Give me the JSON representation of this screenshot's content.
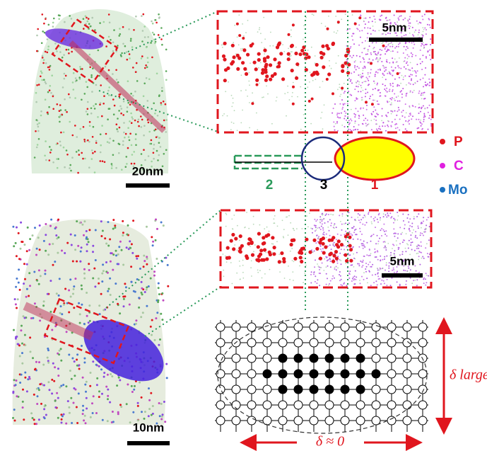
{
  "top_left": {
    "scale_bar": "20nm"
  },
  "top_zoom": {
    "scale_bar": "5nm"
  },
  "schematic": {
    "region_labels": [
      "2",
      "3",
      "1"
    ],
    "legend": [
      "P",
      "C",
      "Mo"
    ]
  },
  "bottom_zoom": {
    "scale_bar": "5nm"
  },
  "bottom_left": {
    "scale_bar": "10nm"
  },
  "lattice": {
    "vertical_label": "δ large",
    "horizontal_label": "δ ≈ 0"
  }
}
